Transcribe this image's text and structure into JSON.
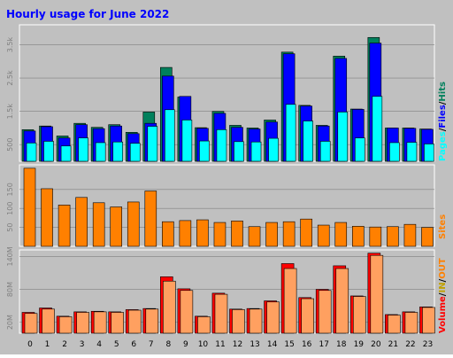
{
  "title": "Hourly usage for June 2022",
  "colors": {
    "background": "#c0c0c0",
    "title": "#0000ff",
    "hits": "#00805c",
    "files": "#0000ff",
    "pages": "#00ffff",
    "sites": "#ff8000",
    "volume": "#ff0000",
    "in": "#ffa060",
    "grid": "#808080"
  },
  "chart_data": [
    {
      "type": "bar",
      "title": "Hourly usage for June 2022",
      "categories": [
        "0",
        "1",
        "2",
        "3",
        "4",
        "5",
        "6",
        "7",
        "8",
        "9",
        "10",
        "11",
        "12",
        "13",
        "14",
        "15",
        "16",
        "17",
        "18",
        "19",
        "20",
        "21",
        "22",
        "23"
      ],
      "series": [
        {
          "name": "Hits",
          "values": [
            950,
            1060,
            760,
            1140,
            1020,
            1100,
            870,
            1480,
            2820,
            1930,
            1010,
            1500,
            1080,
            1000,
            1240,
            3280,
            1680,
            1080,
            3160,
            1570,
            3720,
            1000,
            1000,
            970
          ]
        },
        {
          "name": "Files",
          "values": [
            910,
            1040,
            700,
            1100,
            980,
            1060,
            830,
            1140,
            2560,
            1950,
            990,
            1440,
            1020,
            970,
            1180,
            3230,
            1660,
            1060,
            3090,
            1560,
            3550,
            1000,
            990,
            960
          ]
        },
        {
          "name": "Pages",
          "values": [
            550,
            600,
            460,
            700,
            560,
            580,
            540,
            1050,
            1550,
            1240,
            610,
            950,
            590,
            580,
            690,
            1710,
            1210,
            600,
            1480,
            700,
            1950,
            560,
            570,
            520
          ]
        }
      ],
      "legend": [
        "Pages",
        "/",
        "Files",
        "/",
        "Hits"
      ],
      "yticks": [
        "500",
        "1.5k",
        "2.5k",
        "3.5k"
      ],
      "ylim": [
        0,
        4100
      ]
    },
    {
      "type": "bar",
      "categories": [
        "0",
        "1",
        "2",
        "3",
        "4",
        "5",
        "6",
        "7",
        "8",
        "9",
        "10",
        "11",
        "12",
        "13",
        "14",
        "15",
        "16",
        "17",
        "18",
        "19",
        "20",
        "21",
        "22",
        "23"
      ],
      "series": [
        {
          "name": "Sites",
          "values": [
            206,
            152,
            109,
            129,
            115,
            104,
            117,
            146,
            65,
            68,
            70,
            63,
            67,
            52,
            63,
            65,
            72,
            56,
            63,
            53,
            51,
            52,
            58,
            50
          ]
        }
      ],
      "legend": [
        "Sites"
      ],
      "yticks": [
        "50",
        "100",
        "150"
      ],
      "ylim": [
        0,
        215
      ]
    },
    {
      "type": "bar",
      "categories": [
        "0",
        "1",
        "2",
        "3",
        "4",
        "5",
        "6",
        "7",
        "8",
        "9",
        "10",
        "11",
        "12",
        "13",
        "14",
        "15",
        "16",
        "17",
        "18",
        "19",
        "20",
        "21",
        "22",
        "23"
      ],
      "series": [
        {
          "name": "Volume",
          "values": [
            38,
            46,
            31,
            39,
            40,
            39,
            43,
            45,
            103,
            81,
            31,
            73,
            44,
            45,
            59,
            127,
            65,
            80,
            123,
            68,
            146,
            34,
            39,
            48
          ]
        },
        {
          "name": "IN",
          "values": [
            36,
            44,
            30,
            38,
            39,
            38,
            42,
            44,
            95,
            78,
            30,
            71,
            43,
            44,
            57,
            118,
            63,
            78,
            118,
            67,
            142,
            33,
            38,
            47
          ]
        }
      ],
      "legend": [
        "Volume",
        "/",
        "IN",
        "/",
        "OUT"
      ],
      "yticks": [
        "20M",
        "80M",
        "140M"
      ],
      "ylim": [
        0,
        152
      ]
    }
  ]
}
